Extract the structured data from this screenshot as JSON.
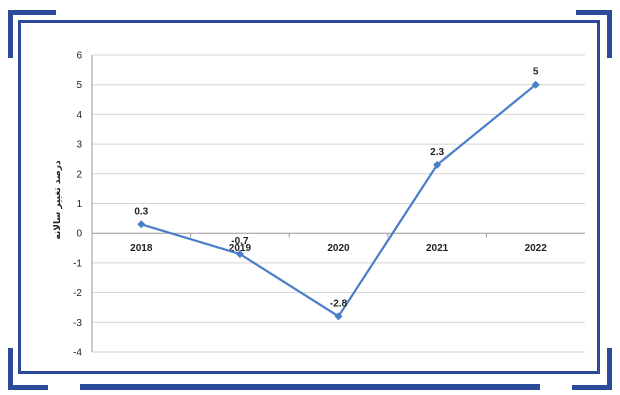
{
  "chart_data": {
    "type": "line",
    "categories": [
      "2018",
      "2019",
      "2020",
      "2021",
      "2022"
    ],
    "series": [
      {
        "values": [
          0.3,
          -0.7,
          -2.8,
          2.3,
          5
        ]
      }
    ],
    "data_labels": [
      "0.3",
      "-0.7",
      "-2.8",
      "2.3",
      "5"
    ],
    "ylabel": "درصد تغییر سالانه",
    "ylim": [
      -4,
      6
    ],
    "yticks": [
      "6",
      "5",
      "4",
      "3",
      "2",
      "1",
      "0",
      "-1",
      "-2",
      "-3",
      "-4"
    ],
    "grid": true,
    "line_color": "#4a7ec8",
    "frame_color": "#2c4a9a"
  }
}
